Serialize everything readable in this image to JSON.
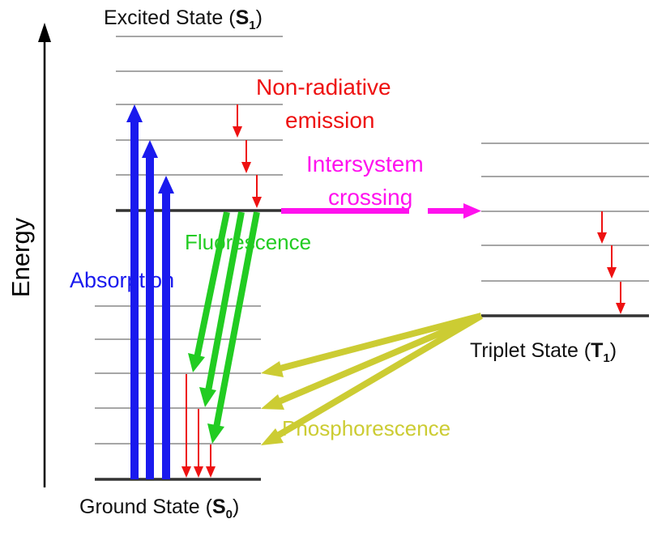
{
  "labels": {
    "excited_state": "Excited State (",
    "excited_symbol": "S",
    "excited_sub": "1",
    "close_paren": ")",
    "ground_state": "Ground State (",
    "ground_symbol": "S",
    "ground_sub": "0",
    "triplet_state": "Triplet State (",
    "triplet_symbol": "T",
    "triplet_sub": "1",
    "energy": "Energy",
    "non_radiative_line1": "Non-radiative",
    "non_radiative_line2": "emission",
    "intersystem_line1": "Intersystem",
    "intersystem_line2": "crossing",
    "fluorescence": "Fluorescence",
    "absorption": "Absorption",
    "phosphorescence": "Phosphorescence"
  },
  "colors": {
    "absorption": "#1a1aee",
    "fluorescence": "#22cc22",
    "non_radiative": "#ee1111",
    "intersystem": "#ff11ee",
    "phosphorescence": "#cccc33",
    "level_main": "#333333",
    "level_vib": "#888888",
    "axis": "#000000"
  },
  "icons": {
    "energy_axis": "up-arrow-icon"
  }
}
